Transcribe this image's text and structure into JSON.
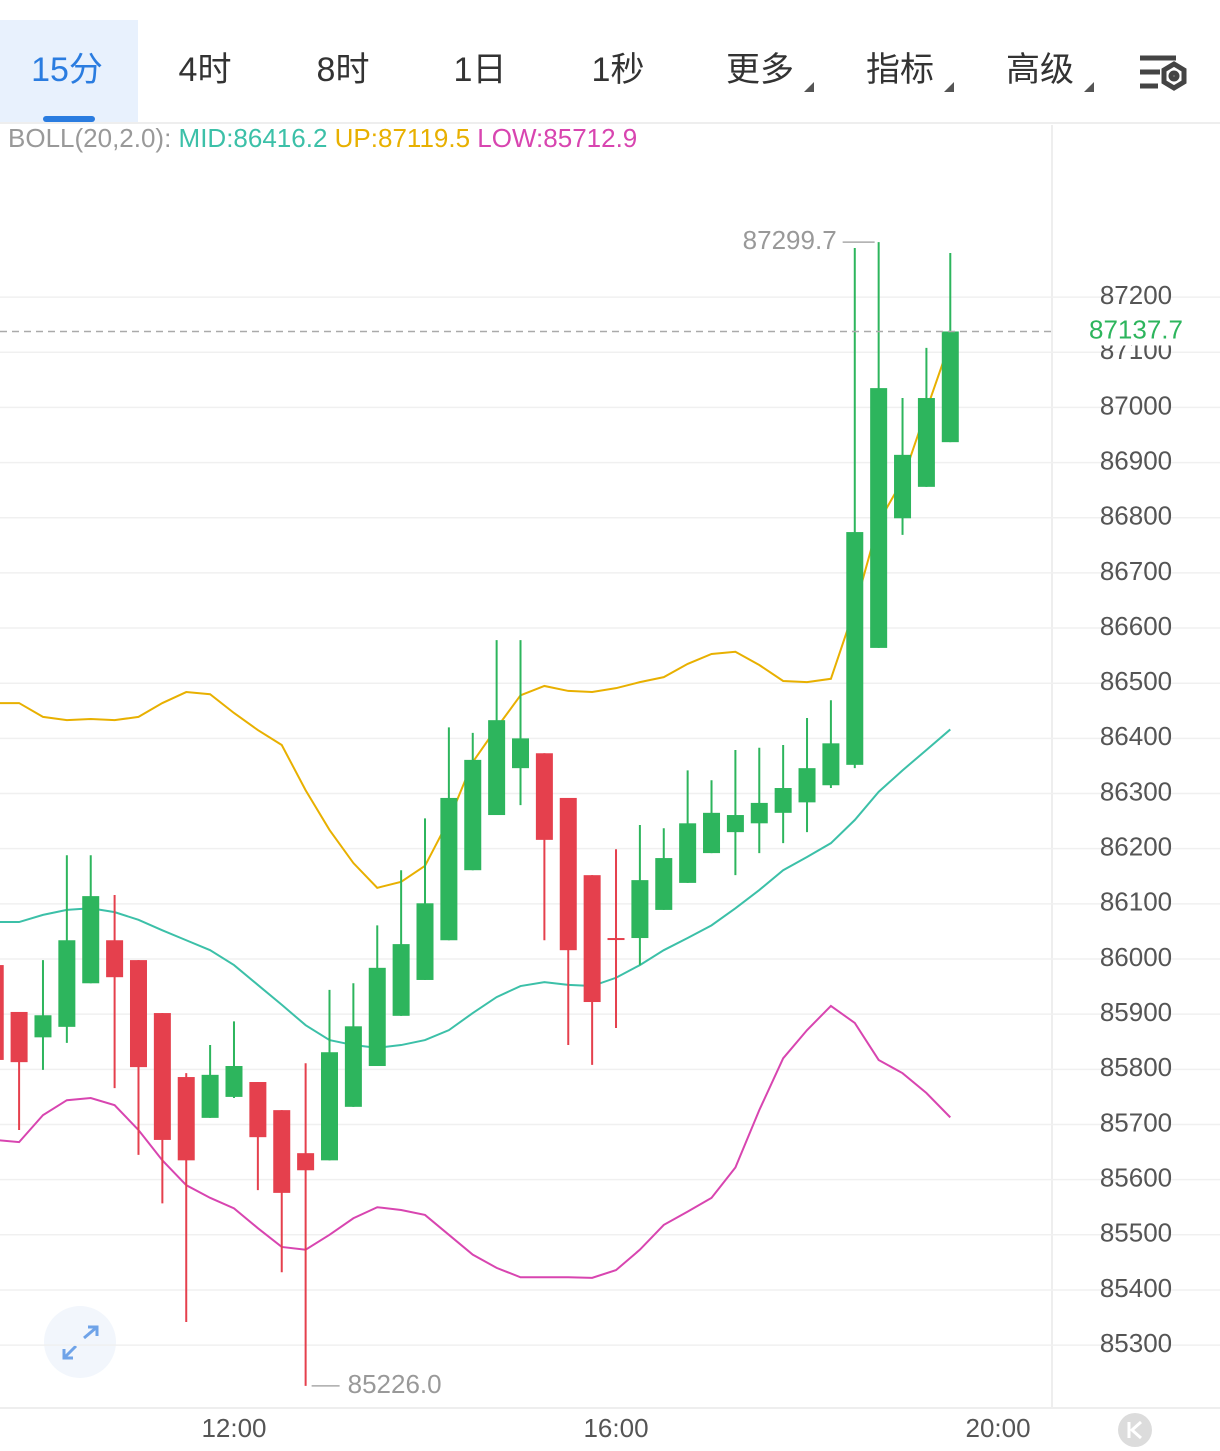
{
  "toolbar": {
    "tabs": [
      {
        "label": "15分",
        "active": true,
        "dropdown": false
      },
      {
        "label": "4时",
        "active": false,
        "dropdown": false
      },
      {
        "label": "8时",
        "active": false,
        "dropdown": false
      },
      {
        "label": "1日",
        "active": false,
        "dropdown": false
      },
      {
        "label": "1秒",
        "active": false,
        "dropdown": false
      },
      {
        "label": "更多",
        "active": false,
        "dropdown": true
      },
      {
        "label": "指标",
        "active": false,
        "dropdown": true
      },
      {
        "label": "高级",
        "active": false,
        "dropdown": true
      }
    ]
  },
  "chart_data": {
    "type": "candlestick",
    "indicator_label": "BOLL(20,2.0):",
    "x": [
      9.5,
      9.75,
      10,
      10.25,
      10.5,
      10.75,
      11,
      11.25,
      11.5,
      11.75,
      12,
      12.25,
      12.5,
      12.75,
      13,
      13.25,
      13.5,
      13.75,
      14,
      14.25,
      14.5,
      14.75,
      15,
      15.25,
      15.5,
      15.75,
      16,
      16.25,
      16.5,
      16.75,
      17,
      17.25,
      17.5,
      17.75,
      18,
      18.25,
      18.5,
      18.75,
      19,
      19.25,
      19.5
    ],
    "open": [
      85989,
      85904,
      85858,
      85877,
      85956,
      86034,
      85998,
      85902,
      85786,
      85712,
      85750,
      85777,
      85726,
      85648,
      85635,
      85732,
      85806,
      85897,
      85962,
      86034,
      86161,
      86261,
      86346,
      86373,
      86292,
      86152,
      86038,
      86038,
      86089,
      86138,
      86192,
      86230,
      86246,
      86265,
      86284,
      86315,
      86352,
      86564,
      86799,
      86856,
      86937
    ],
    "high": [
      85989,
      85904,
      85998,
      86188,
      86188,
      86116,
      85998,
      85902,
      85793,
      85844,
      85887,
      85777,
      85726,
      85811,
      85944,
      85956,
      86061,
      86161,
      86255,
      86420,
      86410,
      86578,
      86578,
      86373,
      86292,
      86152,
      86199,
      86243,
      86237,
      86342,
      86324,
      86379,
      86383,
      86388,
      86437,
      86469,
      87289,
      87299.7,
      87017,
      87108,
      87280
    ],
    "low": [
      85817,
      85690,
      85799,
      85848,
      85956,
      85766,
      85645,
      85557,
      85342,
      85712,
      85748,
      85581,
      85432,
      85226,
      85635,
      85732,
      85806,
      85897,
      85962,
      86034,
      86161,
      86261,
      86279,
      86034,
      85844,
      85808,
      85875,
      85989,
      86089,
      86138,
      86192,
      86152,
      86192,
      86210,
      86230,
      86310,
      86346,
      86564,
      86769,
      86856,
      86937
    ],
    "close": [
      85817,
      85813,
      85898,
      86034,
      86114,
      85967,
      85804,
      85672,
      85635,
      85790,
      85806,
      85677,
      85576,
      85617,
      85831,
      85878,
      85984,
      86027,
      86101,
      86292,
      86361,
      86433,
      86400,
      86216,
      86016,
      85922,
      86036,
      86143,
      86183,
      86246,
      86265,
      86261,
      86283,
      86310,
      86346,
      86391,
      86774,
      87035,
      86914,
      87017,
      87137.7
    ],
    "up_color": "#2db55d",
    "down_color": "#e5404d",
    "series": [
      {
        "name": "MID:86416.2",
        "color": "#3cc0a8",
        "values": [
          86067,
          86067,
          86080,
          86089,
          86092,
          86085,
          86071,
          86052,
          86034,
          86016,
          85989,
          85953,
          85917,
          85880,
          85853,
          85844,
          85839,
          85844,
          85853,
          85871,
          85902,
          85931,
          85951,
          85958,
          85953,
          85951,
          85966,
          85989,
          86016,
          86038,
          86061,
          86092,
          86125,
          86161,
          86185,
          86210,
          86252,
          86303,
          86342,
          86379,
          86416.2
        ]
      },
      {
        "name": "UP:87119.5",
        "color": "#e8b000",
        "values": [
          86464,
          86464,
          86439,
          86433,
          86435,
          86433,
          86439,
          86464,
          86484,
          86480,
          86446,
          86415,
          86388,
          86306,
          86234,
          86174,
          86129,
          86140,
          86169,
          86252,
          86357,
          86419,
          86478,
          86495,
          86486,
          86484,
          86491,
          86502,
          86511,
          86535,
          86553,
          86557,
          86533,
          86504,
          86502,
          86508,
          86636,
          86792,
          86868,
          86995,
          87119.5
        ]
      },
      {
        "name": "LOW:85712.9",
        "color": "#d845b0",
        "values": [
          85672,
          85668,
          85717,
          85744,
          85748,
          85735,
          85690,
          85635,
          85590,
          85567,
          85548,
          85512,
          85478,
          85473,
          85500,
          85530,
          85550,
          85545,
          85536,
          85500,
          85464,
          85440,
          85423,
          85423,
          85423,
          85422,
          85436,
          85473,
          85518,
          85542,
          85567,
          85622,
          85726,
          85820,
          85871,
          85915,
          85884,
          85817,
          85793,
          85757,
          85712.9
        ]
      }
    ],
    "last_price": 87137.7,
    "annotations": [
      {
        "x": 18.75,
        "value": 87299.7
      },
      {
        "x": 12.75,
        "value": 85226,
        "label": "85226.0"
      }
    ],
    "xlim": [
      9.55,
      20.565
    ],
    "xticks": [
      {
        "value": 12,
        "label": "12:00"
      },
      {
        "value": 16,
        "label": "16:00"
      },
      {
        "value": 20,
        "label": "20:00"
      }
    ],
    "ylim": [
      85186,
      87512
    ],
    "yticks": [
      85300,
      85400,
      85500,
      85600,
      85700,
      85800,
      85900,
      86000,
      86100,
      86200,
      86300,
      86400,
      86500,
      86600,
      86700,
      86800,
      86900,
      87000,
      87100,
      87200
    ],
    "grid": true
  }
}
